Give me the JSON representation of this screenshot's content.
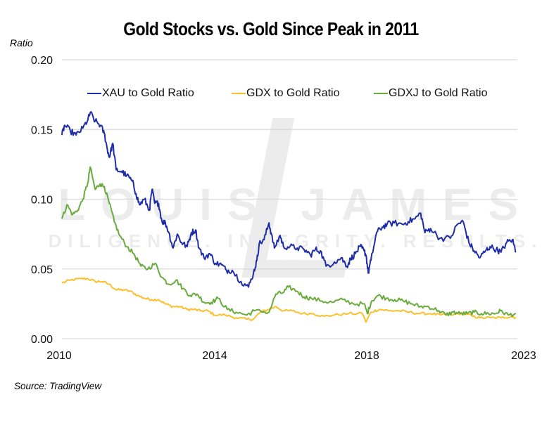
{
  "chart_data": {
    "type": "line",
    "title": "Gold Stocks vs. Gold Since Peak in 2011",
    "ylabel": "Ratio",
    "xlabel": "",
    "source": "Source: TradingView",
    "ylim": [
      0,
      0.2
    ],
    "yticks": [
      {
        "value": 0.0,
        "label": "0.00"
      },
      {
        "value": 0.05,
        "label": "0.05"
      },
      {
        "value": 0.1,
        "label": "0.10"
      },
      {
        "value": 0.15,
        "label": "0.15"
      },
      {
        "value": 0.2,
        "label": "0.20"
      }
    ],
    "xlim": [
      2010,
      2023
    ],
    "xticks": [
      {
        "value": 2010,
        "label": "2010"
      },
      {
        "value": 2014,
        "label": "2014"
      },
      {
        "value": 2018,
        "label": "2018"
      },
      {
        "value": 2023,
        "label": "2023"
      }
    ],
    "grid": "horizontal",
    "legend_position": "top",
    "watermark": {
      "name": "LOUIS JAMES",
      "tagline": "DILIGENCE. INTEGRITY. RESULTS.",
      "monogram": "L"
    },
    "series": [
      {
        "name": "XAU to Gold Ratio",
        "color": "#1f2ea6",
        "noise": 0.0022,
        "x": [
          2010.0,
          2010.07,
          2010.22,
          2010.37,
          2010.55,
          2010.68,
          2010.74,
          2010.87,
          2011.01,
          2011.11,
          2011.18,
          2011.24,
          2011.33,
          2011.42,
          2011.55,
          2011.7,
          2011.84,
          2011.94,
          2012.03,
          2012.16,
          2012.29,
          2012.36,
          2012.43,
          2012.53,
          2012.62,
          2012.71,
          2012.8,
          2012.91,
          2013.02,
          2013.13,
          2013.28,
          2013.39,
          2013.5,
          2013.59,
          2013.72,
          2013.87,
          2014.02,
          2014.18,
          2014.31,
          2014.46,
          2014.69,
          2014.89,
          2015.02,
          2015.11,
          2015.17,
          2015.3,
          2015.43,
          2015.48,
          2015.57,
          2015.72,
          2015.81,
          2015.98,
          2016.17,
          2016.35,
          2016.52,
          2016.65,
          2016.78,
          2016.93,
          2017.15,
          2017.33,
          2017.48,
          2017.57,
          2017.7,
          2017.83,
          2017.93,
          2017.98,
          2018.05,
          2018.14,
          2018.33,
          2018.52,
          2018.68,
          2018.92,
          2019.2,
          2019.39,
          2019.62,
          2019.81,
          2019.95,
          2020.14,
          2020.45,
          2020.8,
          2021.04,
          2021.23,
          2021.42,
          2021.6,
          2021.79,
          2021.98,
          2022.13,
          2022.34,
          2022.5,
          2022.69,
          2022.88,
          2023.0
        ],
        "y": [
          0.146,
          0.153,
          0.149,
          0.146,
          0.151,
          0.157,
          0.162,
          0.156,
          0.153,
          0.147,
          0.137,
          0.13,
          0.14,
          0.121,
          0.12,
          0.117,
          0.113,
          0.104,
          0.096,
          0.1,
          0.092,
          0.107,
          0.097,
          0.097,
          0.084,
          0.083,
          0.076,
          0.065,
          0.075,
          0.069,
          0.066,
          0.076,
          0.078,
          0.065,
          0.058,
          0.061,
          0.054,
          0.053,
          0.049,
          0.049,
          0.041,
          0.037,
          0.047,
          0.056,
          0.068,
          0.071,
          0.083,
          0.076,
          0.065,
          0.074,
          0.066,
          0.066,
          0.065,
          0.064,
          0.06,
          0.064,
          0.063,
          0.052,
          0.055,
          0.058,
          0.052,
          0.057,
          0.061,
          0.066,
          0.063,
          0.06,
          0.047,
          0.056,
          0.076,
          0.08,
          0.082,
          0.083,
          0.082,
          0.084,
          0.086,
          0.09,
          0.076,
          0.079,
          0.072,
          0.072,
          0.082,
          0.084,
          0.069,
          0.063,
          0.058,
          0.063,
          0.066,
          0.064,
          0.062,
          0.069,
          0.071,
          0.062
        ]
      },
      {
        "name": "GDX to Gold Ratio",
        "color": "#fcc02e",
        "noise": 0.0009,
        "x": [
          2010.0,
          2010.22,
          2010.5,
          2010.68,
          2010.87,
          2011.05,
          2011.24,
          2011.42,
          2011.61,
          2011.79,
          2011.98,
          2012.16,
          2012.34,
          2012.53,
          2012.71,
          2012.9,
          2013.08,
          2013.27,
          2013.45,
          2013.63,
          2013.82,
          2014.0,
          2014.28,
          2014.56,
          2014.83,
          2015.02,
          2015.2,
          2015.43,
          2015.61,
          2015.8,
          2016.04,
          2016.31,
          2016.59,
          2016.87,
          2017.15,
          2017.52,
          2017.89,
          2017.98,
          2018.14,
          2018.42,
          2018.75,
          2019.08,
          2019.43,
          2019.79,
          2020.14,
          2020.49,
          2020.85,
          2021.08,
          2021.32,
          2021.56,
          2021.79,
          2022.15,
          2022.5,
          2022.85,
          2023.0
        ],
        "y": [
          0.04,
          0.042,
          0.043,
          0.043,
          0.041,
          0.041,
          0.039,
          0.035,
          0.035,
          0.034,
          0.031,
          0.029,
          0.028,
          0.028,
          0.025,
          0.023,
          0.023,
          0.021,
          0.021,
          0.02,
          0.02,
          0.017,
          0.017,
          0.015,
          0.014,
          0.014,
          0.019,
          0.021,
          0.023,
          0.02,
          0.02,
          0.018,
          0.018,
          0.016,
          0.017,
          0.018,
          0.018,
          0.012,
          0.019,
          0.021,
          0.02,
          0.02,
          0.019,
          0.018,
          0.018,
          0.017,
          0.017,
          0.018,
          0.018,
          0.016,
          0.015,
          0.015,
          0.015,
          0.016,
          0.015
        ]
      },
      {
        "name": "GDXJ to Gold Ratio",
        "color": "#6aab3e",
        "noise": 0.0016,
        "x": [
          2010.0,
          2010.13,
          2010.28,
          2010.41,
          2010.55,
          2010.68,
          2010.74,
          2010.87,
          2011.0,
          2011.11,
          2011.24,
          2011.37,
          2011.51,
          2011.7,
          2011.88,
          2012.07,
          2012.25,
          2012.44,
          2012.62,
          2012.8,
          2012.99,
          2013.17,
          2013.36,
          2013.54,
          2013.73,
          2013.91,
          2014.09,
          2014.33,
          2014.57,
          2014.85,
          2015.04,
          2015.43,
          2015.61,
          2015.8,
          2015.94,
          2016.17,
          2016.35,
          2016.54,
          2016.82,
          2017.09,
          2017.37,
          2017.65,
          2017.93,
          2018.02,
          2018.16,
          2018.38,
          2018.66,
          2018.94,
          2019.22,
          2019.51,
          2019.79,
          2020.07,
          2020.42,
          2020.66,
          2020.89,
          2021.13,
          2021.37,
          2021.6,
          2021.84,
          2022.08,
          2022.31,
          2022.48,
          2022.74,
          2023.0
        ],
        "y": [
          0.086,
          0.096,
          0.089,
          0.092,
          0.1,
          0.112,
          0.123,
          0.107,
          0.111,
          0.109,
          0.097,
          0.084,
          0.074,
          0.066,
          0.061,
          0.052,
          0.05,
          0.054,
          0.044,
          0.039,
          0.042,
          0.036,
          0.031,
          0.032,
          0.026,
          0.026,
          0.029,
          0.021,
          0.019,
          0.017,
          0.02,
          0.019,
          0.032,
          0.033,
          0.037,
          0.034,
          0.03,
          0.029,
          0.027,
          0.026,
          0.028,
          0.025,
          0.025,
          0.018,
          0.027,
          0.031,
          0.029,
          0.028,
          0.027,
          0.025,
          0.023,
          0.023,
          0.02,
          0.017,
          0.019,
          0.018,
          0.018,
          0.019,
          0.018,
          0.018,
          0.018,
          0.02,
          0.017,
          0.018
        ]
      }
    ]
  }
}
